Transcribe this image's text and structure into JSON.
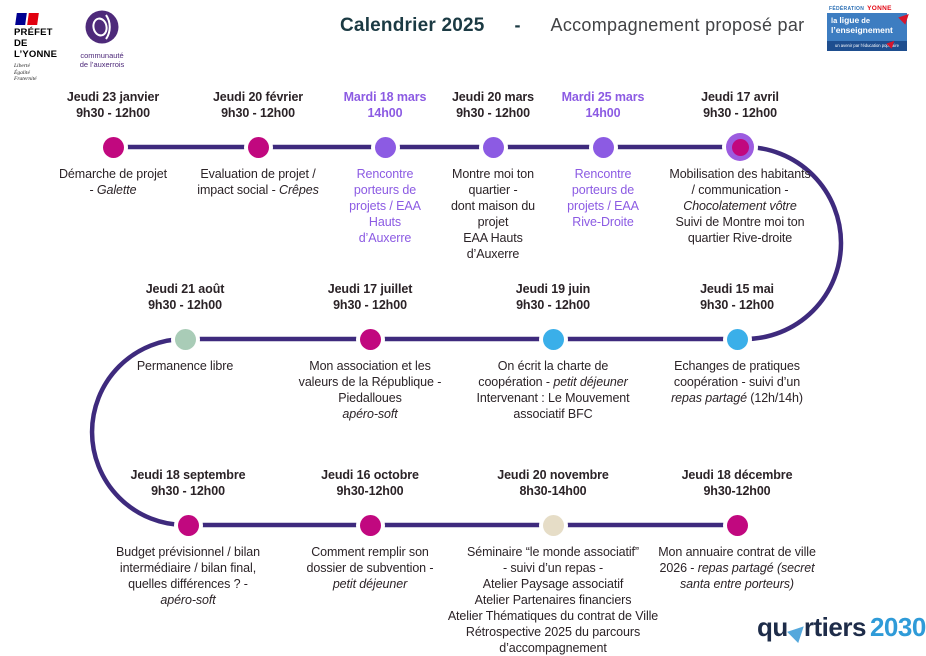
{
  "header": {
    "prefet": {
      "line1": "PRÉFET",
      "line2": "DE L’YONNE",
      "motto": [
        "Liberté",
        "Égalité",
        "Fraternité"
      ]
    },
    "communaute": {
      "line1": "communauté",
      "line2": "de l’auxerrois"
    },
    "title_bold": "Calendrier 2025",
    "title_sep": "-",
    "title_rest": "Accompagnement proposé par",
    "ligue": {
      "federation": "FÉDÉRATION",
      "yonne": "YONNE",
      "la": "la",
      "ligue": "ligue",
      "de": "de",
      "enseignement": "l’enseignement",
      "tagline": "un avenir par l’éducation populaire"
    }
  },
  "colors": {
    "magenta": "#C1087F",
    "purple": "#8C5BE3",
    "blue": "#3AAFE9",
    "green": "#A9CCB7",
    "beige": "#E6DDC7",
    "ring": "#9C5CE0",
    "timeline": "#3E2A7D",
    "purple_text": "#8C5BE3",
    "dark_text": "#2B2327"
  },
  "events": [
    {
      "date": "Jeudi 23 janvier",
      "time": "9h30 - 12h00",
      "dot": "magenta",
      "theme": "dark",
      "lines": [
        [
          {
            "t": "Démarche de projet"
          }
        ],
        [
          {
            "t": "- "
          },
          {
            "t": "Galette",
            "i": true
          }
        ]
      ]
    },
    {
      "date": "Jeudi 20 février",
      "time": "9h30 - 12h00",
      "dot": "magenta",
      "theme": "dark",
      "lines": [
        [
          {
            "t": "Evaluation de projet /"
          }
        ],
        [
          {
            "t": "impact social - "
          },
          {
            "t": "Crêpes",
            "i": true
          }
        ]
      ]
    },
    {
      "date": "Mardi 18 mars",
      "time": "14h00",
      "dot": "purple",
      "theme": "purple",
      "lines": [
        [
          {
            "t": "Rencontre"
          }
        ],
        [
          {
            "t": "porteurs de"
          }
        ],
        [
          {
            "t": "projets / EAA"
          }
        ],
        [
          {
            "t": "Hauts"
          }
        ],
        [
          {
            "t": "d’Auxerre"
          }
        ]
      ]
    },
    {
      "date": "Jeudi 20 mars",
      "time": "9h30 - 12h00",
      "dot": "purple",
      "theme": "dark",
      "lines": [
        [
          {
            "t": "Montre moi ton"
          }
        ],
        [
          {
            "t": "quartier -"
          }
        ],
        [
          {
            "t": "dont maison du"
          }
        ],
        [
          {
            "t": "projet"
          }
        ],
        [
          {
            "t": "EAA Hauts"
          }
        ],
        [
          {
            "t": "d’Auxerre"
          }
        ]
      ]
    },
    {
      "date": "Mardi 25 mars",
      "time": "14h00",
      "dot": "purple",
      "theme": "purple",
      "lines": [
        [
          {
            "t": "Rencontre"
          }
        ],
        [
          {
            "t": "porteurs de"
          }
        ],
        [
          {
            "t": "projets / EAA"
          }
        ],
        [
          {
            "t": "Rive-Droite"
          }
        ]
      ]
    },
    {
      "date": "Jeudi 17 avril",
      "time": "9h30 - 12h00",
      "dot": "magenta-ring",
      "theme": "dark",
      "lines": [
        [
          {
            "t": "Mobilisation des habitants"
          }
        ],
        [
          {
            "t": "/ communication -"
          }
        ],
        [
          {
            "t": "Chocolatement vôtre",
            "i": true
          }
        ],
        [
          {
            "t": "Suivi de Montre moi ton"
          }
        ],
        [
          {
            "t": "quartier Rive-droite"
          }
        ]
      ]
    },
    {
      "date": "Jeudi 21 août",
      "time": "9h30 - 12h00",
      "dot": "green",
      "theme": "dark",
      "lines": [
        [
          {
            "t": "Permanence libre"
          }
        ]
      ]
    },
    {
      "date": "Jeudi 17 juillet",
      "time": "9h30 - 12h00",
      "dot": "magenta",
      "theme": "dark",
      "lines": [
        [
          {
            "t": "Mon association et les"
          }
        ],
        [
          {
            "t": "valeurs de la République -"
          }
        ],
        [
          {
            "t": "Piedalloues"
          }
        ],
        [
          {
            "t": "apéro-soft",
            "i": true
          }
        ]
      ]
    },
    {
      "date": "Jeudi 19 juin",
      "time": "9h30 - 12h00",
      "dot": "blue",
      "theme": "dark",
      "lines": [
        [
          {
            "t": "On écrit la charte de"
          }
        ],
        [
          {
            "t": "coopération - "
          },
          {
            "t": "petit déjeuner",
            "i": true
          }
        ],
        [
          {
            "t": "Intervenant : Le Mouvement"
          }
        ],
        [
          {
            "t": "associatif BFC"
          }
        ]
      ]
    },
    {
      "date": "Jeudi 15 mai",
      "time": "9h30 - 12h00",
      "dot": "blue",
      "theme": "dark",
      "lines": [
        [
          {
            "t": "Echanges de pratiques"
          }
        ],
        [
          {
            "t": "coopération - suivi d’un"
          }
        ],
        [
          {
            "t": "repas partagé",
            "i": true
          },
          {
            "t": " (12h/14h)"
          }
        ]
      ]
    },
    {
      "date": "Jeudi 18 septembre",
      "time": "9h30 - 12h00",
      "dot": "magenta",
      "theme": "dark",
      "lines": [
        [
          {
            "t": "Budget prévisionnel / bilan"
          }
        ],
        [
          {
            "t": "intermédiaire / bilan final,"
          }
        ],
        [
          {
            "t": "quelles différences ? -"
          }
        ],
        [
          {
            "t": "apéro-soft",
            "i": true
          }
        ]
      ]
    },
    {
      "date": "Jeudi 16 octobre",
      "time": "9h30-12h00",
      "dot": "magenta",
      "theme": "dark",
      "lines": [
        [
          {
            "t": "Comment remplir son"
          }
        ],
        [
          {
            "t": "dossier de subvention -"
          }
        ],
        [
          {
            "t": "petit déjeuner",
            "i": true
          }
        ]
      ]
    },
    {
      "date": "Jeudi 20 novembre",
      "time": "8h30-14h00",
      "dot": "beige",
      "theme": "dark",
      "lines": [
        [
          {
            "t": "Séminaire “le monde associatif”"
          }
        ],
        [
          {
            "t": "- suivi d’un repas -"
          }
        ],
        [
          {
            "t": "Atelier Paysage associatif"
          }
        ],
        [
          {
            "t": "Atelier Partenaires financiers"
          }
        ],
        [
          {
            "t": "Atelier Thématiques du contrat de Ville"
          }
        ],
        [
          {
            "t": "Rétrospective 2025 du parcours"
          }
        ],
        [
          {
            "t": "d’accompagnement"
          }
        ]
      ]
    },
    {
      "date": "Jeudi 18 décembre",
      "time": "9h30-12h00",
      "dot": "magenta",
      "theme": "dark",
      "lines": [
        [
          {
            "t": "Mon annuaire contrat de ville"
          }
        ],
        [
          {
            "t": "2026 - "
          },
          {
            "t": "repas partagé (secret",
            "i": true
          }
        ],
        [
          {
            "t": "santa entre porteurs)",
            "i": true
          }
        ]
      ]
    }
  ],
  "footer": {
    "qu": "qu",
    "rtiers": "rtiers",
    "year": "2030"
  }
}
